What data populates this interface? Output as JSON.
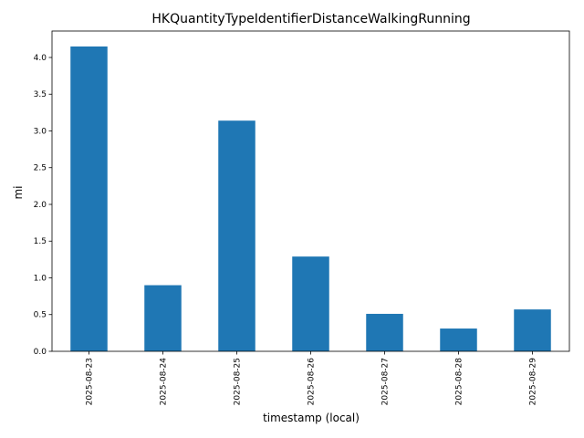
{
  "chart_data": {
    "type": "bar",
    "title": "HKQuantityTypeIdentifierDistanceWalkingRunning",
    "x_label": "timestamp (local)",
    "y_label": "mi",
    "categories": [
      "2025-08-23",
      "2025-08-24",
      "2025-08-25",
      "2025-08-26",
      "2025-08-27",
      "2025-08-28",
      "2025-08-29"
    ],
    "values": [
      4.15,
      0.9,
      3.14,
      1.29,
      0.51,
      0.31,
      0.57
    ],
    "color": "#1f77b4",
    "ylim": [
      0,
      4.36
    ],
    "yticks": [
      {
        "value": 0,
        "label": "0.0"
      },
      0.5,
      {
        "value": 1,
        "label": "1.0"
      },
      1.5,
      {
        "value": 2,
        "label": "2.0"
      },
      2.5,
      {
        "value": 3,
        "label": "3.0"
      },
      3.5,
      {
        "value": 4,
        "label": "4.0"
      }
    ]
  }
}
